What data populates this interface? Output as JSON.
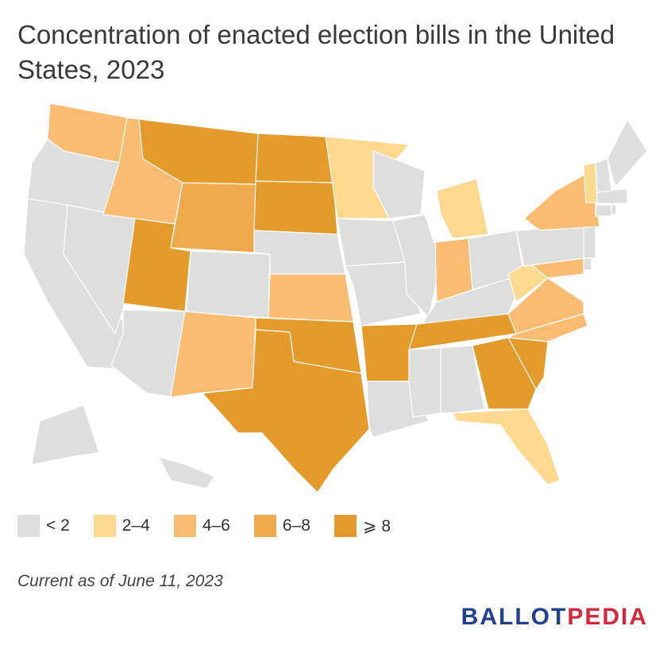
{
  "title": "Concentration of enacted election bills in the United States, 2023",
  "note": "Current as of June 11, 2023",
  "brand": {
    "part1": "BALLOT",
    "part2": "PEDIA",
    "color1": "#23408f",
    "color2": "#d6273b"
  },
  "legend": [
    {
      "label": "< 2",
      "color": "#dedede"
    },
    {
      "label": "2–4",
      "color": "#fcd98e"
    },
    {
      "label": "4–6",
      "color": "#f9bc72"
    },
    {
      "label": "6–8",
      "color": "#f0a94c"
    },
    {
      "label": "⩾ 8",
      "color": "#e59a2c"
    }
  ],
  "states": {
    "WA": "4-6",
    "OR": "<2",
    "CA": "<2",
    "NV": "<2",
    "ID": "4-6",
    "MT": ">=8",
    "WY": "6-8",
    "UT": ">=8",
    "AZ": "<2",
    "CO": "<2",
    "NM": "4-6",
    "ND": ">=8",
    "SD": ">=8",
    "NE": "<2",
    "KS": "4-6",
    "OK": ">=8",
    "TX": ">=8",
    "MN": "2-4",
    "IA": "<2",
    "MO": "<2",
    "AR": ">=8",
    "LA": "<2",
    "WI": "<2",
    "IL": "<2",
    "MI": "2-4",
    "IN": "4-6",
    "OH": "<2",
    "KY": "<2",
    "TN": ">=8",
    "MS": "<2",
    "AL": "<2",
    "GA": ">=8",
    "FL": "2-4",
    "SC": ">=8",
    "NC": "4-6",
    "VA": "4-6",
    "WV": "2-4",
    "MD": "4-6",
    "DE": "<2",
    "NJ": "<2",
    "PA": "<2",
    "NY": "4-6",
    "CT": "<2",
    "RI": "<2",
    "MA": "<2",
    "VT": "2-4",
    "NH": "<2",
    "ME": "<2",
    "AK": "<2",
    "HI": "<2"
  }
}
